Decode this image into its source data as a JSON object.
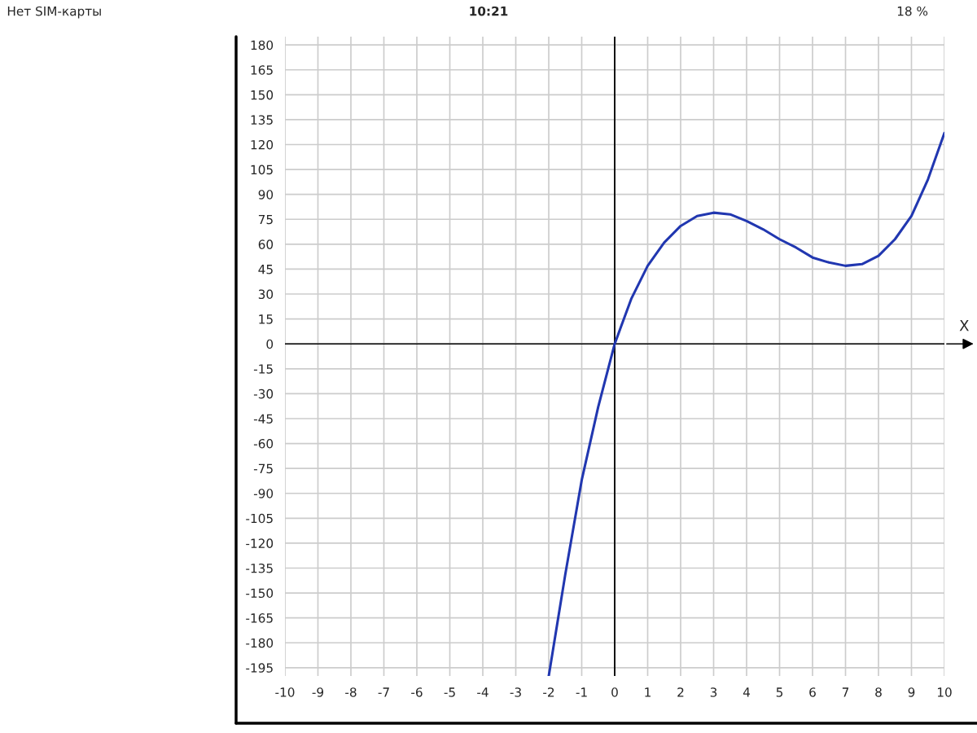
{
  "chart_data": {
    "type": "line",
    "xlabel": "X",
    "x": [
      -2,
      -1.5,
      -1,
      -0.5,
      0,
      0.5,
      1,
      1.5,
      2,
      2.5,
      3,
      3.5,
      4,
      4.5,
      5,
      5.5,
      6,
      6.5,
      7,
      7.5,
      8,
      8.5,
      9,
      9.5,
      10
    ],
    "series": [
      {
        "color": "#2137b0",
        "values": [
          -200,
          -139,
          -82,
          -38,
          0,
          27,
          47,
          61,
          71,
          77,
          79,
          78,
          74,
          69,
          63,
          58,
          52,
          49,
          47,
          48,
          53,
          63,
          77,
          99,
          127
        ]
      }
    ],
    "xlim": [
      -10,
      10
    ],
    "ylim": [
      -200,
      185
    ],
    "xticks": [
      -10,
      -9,
      -8,
      -7,
      -6,
      -5,
      -4,
      -3,
      -2,
      -1,
      0,
      1,
      2,
      3,
      4,
      5,
      6,
      7,
      8,
      9,
      10
    ],
    "yticks": [
      -195,
      -180,
      -165,
      -150,
      -135,
      -120,
      -105,
      -90,
      -75,
      -60,
      -45,
      -30,
      -15,
      0,
      15,
      30,
      45,
      60,
      75,
      90,
      105,
      120,
      135,
      150,
      165,
      180
    ],
    "grid": true,
    "line_style": "solid",
    "marker": "none",
    "annotations": [
      "Нет SIM-карты",
      "10:21",
      "18 %"
    ]
  }
}
